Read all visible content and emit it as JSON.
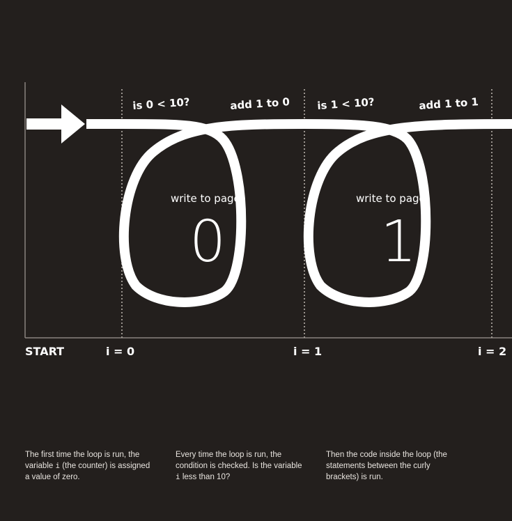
{
  "diagram": {
    "top_labels": [
      "is 0 < 10?",
      "add 1 to 0",
      "is 1 < 10?",
      "add 1 to 1"
    ],
    "loops": [
      {
        "write_label": "write to page:",
        "value": "0"
      },
      {
        "write_label": "write to page:",
        "value": "1"
      }
    ],
    "axis": {
      "start": "START",
      "markers": [
        "i = 0",
        "i = 1",
        "i = 2"
      ]
    }
  },
  "captions": [
    {
      "text_before": "The first time the loop is run, the variable ",
      "code": "i",
      "text_after": " (the counter) is assigned a value of zero."
    },
    {
      "text_before": "Every time the loop is run, the condition is checked. Is the variable ",
      "code": "i",
      "text_after": " less than 10?"
    },
    {
      "text_before": "Then the code inside the loop (the statements between the curly brackets) is run.",
      "code": "",
      "text_after": ""
    }
  ],
  "colors": {
    "background": "#231f1d",
    "foreground": "#ffffff",
    "dotted_line": "#9a948e"
  }
}
